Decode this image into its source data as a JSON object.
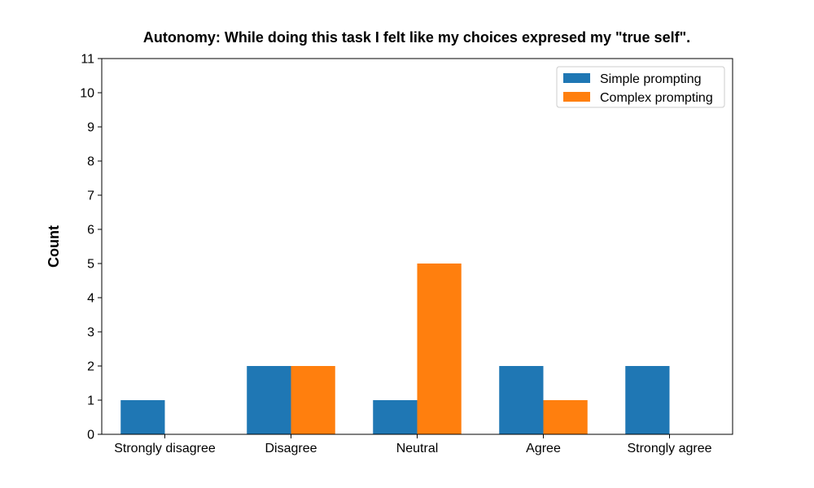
{
  "chart_data": {
    "type": "bar",
    "title": "Autonomy: While doing this task I felt like my choices expresed my \"true self\".",
    "xlabel": "",
    "ylabel": "Count",
    "categories": [
      "Strongly disagree",
      "Disagree",
      "Neutral",
      "Agree",
      "Strongly agree"
    ],
    "series": [
      {
        "name": "Simple prompting",
        "values": [
          1,
          2,
          1,
          2,
          2
        ],
        "color": "#1f77b4"
      },
      {
        "name": "Complex prompting",
        "values": [
          0,
          2,
          5,
          1,
          0
        ],
        "color": "#ff7f0e"
      }
    ],
    "ylim": [
      0,
      11
    ],
    "yticks": [
      "0",
      "1",
      "2",
      "3",
      "4",
      "5",
      "6",
      "7",
      "8",
      "9",
      "10",
      "11"
    ],
    "grid": false,
    "legend_position": "top-right"
  }
}
